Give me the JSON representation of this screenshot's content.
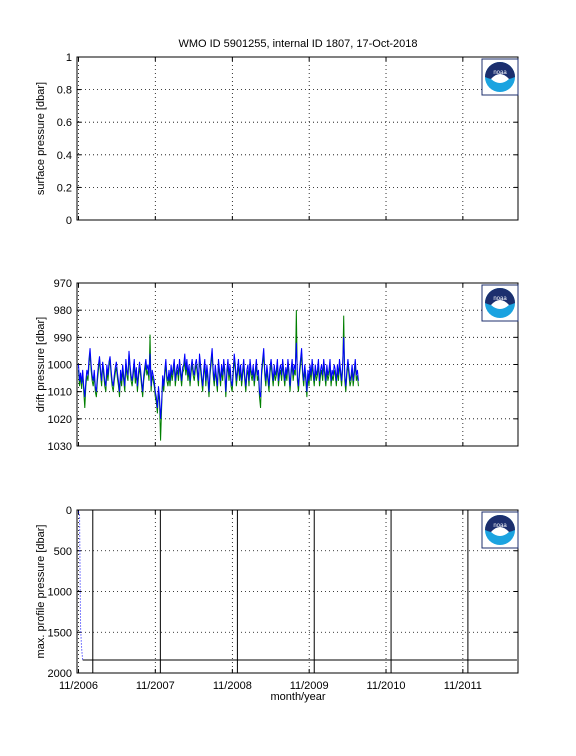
{
  "figure": {
    "title": "WMO ID 5901255, internal ID 1807, 17-Oct-2018",
    "xlabel": "month/year",
    "logo_text": "noaa",
    "logo_colors": {
      "navy": "#1c2f6e",
      "cyan": "#1ba3e0",
      "white": "#ffffff"
    }
  },
  "chart_data": [
    {
      "type": "line",
      "name": "surface",
      "ylabel": "surface pressure [dbar]",
      "ylim": [
        0,
        1
      ],
      "y_reversed": false,
      "yticks": [
        0,
        0.2,
        0.4,
        0.6,
        0.8,
        1
      ],
      "ytick_labels": [
        "0",
        "0.2",
        "0.4",
        "0.6",
        "0.8",
        "1"
      ],
      "xlim": [
        "2006-10-25",
        "2012-07-20"
      ],
      "xticks": [
        "2006-11-01",
        "2007-11-01",
        "2008-11-01",
        "2009-11-01",
        "2010-11-01",
        "2011-11-01"
      ],
      "xtick_labels": [
        "",
        "",
        "",
        "",
        "",
        ""
      ],
      "grid": true,
      "series": []
    },
    {
      "type": "line",
      "name": "drift",
      "ylabel": "drift pressure [dbar]",
      "ylim": [
        970,
        1030
      ],
      "y_reversed": true,
      "yticks": [
        970,
        980,
        990,
        1000,
        1010,
        1020,
        1030
      ],
      "ytick_labels": [
        "970",
        "980",
        "990",
        "1000",
        "1010",
        "1020",
        "1030"
      ],
      "xlim": [
        "2006-10-25",
        "2012-07-20"
      ],
      "xticks": [
        "2006-11-01",
        "2007-11-01",
        "2008-11-01",
        "2009-11-01",
        "2010-11-01",
        "2011-11-01"
      ],
      "xtick_labels": [
        "",
        "",
        "",
        "",
        "",
        ""
      ],
      "grid": true,
      "series": [
        {
          "color": "#007f00",
          "start": "2006-11-01",
          "step_days": 5,
          "values": [
            1002,
            1008,
            1004,
            1009,
            1003,
            1010,
            1016,
            1008,
            1004,
            1006,
            1000,
            996,
            1002,
            1006,
            1008,
            1004,
            1010,
            1012,
            1006,
            1002,
            998,
            1004,
            1008,
            1000,
            1004,
            1008,
            1010,
            1002,
            1006,
            1001,
            998,
            1004,
            1008,
            1010,
            1006,
            1003,
            1001,
            1005,
            1008,
            1012,
            1004,
            1008,
            1002,
            1006,
            1010,
            1000,
            1004,
            1006,
            996,
            1002,
            1006,
            1008,
            1004,
            1000,
            1007,
            1003,
            1010,
            1005,
            1001,
            1004,
            1008,
            1012,
            1006,
            1003,
            1000,
            1004,
            1002,
            1006,
            989,
            1010,
            1004,
            1006,
            1008,
            1012,
            1014,
            1018,
            1010,
            1014,
            1028,
            1016,
            1006,
            1010,
            1004,
            1000,
            1006,
            1008,
            1004,
            1008,
            1002,
            1006,
            1003,
            1000,
            1008,
            1004,
            1002,
            1006,
            1000,
            1004,
            1008,
            1003,
            1002,
            998,
            1004,
            1000,
            1006,
            1002,
            1008,
            1003,
            1000,
            1004,
            1006,
            1002,
            1000,
            1004,
            1008,
            998,
            1002,
            1006,
            1010,
            1004,
            1000,
            1008,
            1002,
            1006,
            1012,
            1004,
            1000,
            996,
            1004,
            1008,
            1002,
            1006,
            1010,
            1000,
            1004,
            1008,
            1002,
            1006,
            1000,
            1004,
            1012,
            1004,
            1000,
            1006,
            1002,
            1008,
            1010,
            1004,
            998,
            1002,
            1008,
            1004,
            1000,
            1006,
            1002,
            1008,
            1004,
            1000,
            1006,
            1010,
            1004,
            1002,
            1008,
            1000,
            1004,
            1006,
            1002,
            1008,
            1004,
            1000,
            1006,
            1004,
            1012,
            1016,
            1004,
            1000,
            996,
            1004,
            1008,
            1002,
            1006,
            1010,
            1003,
            1000,
            1004,
            1008,
            1002,
            1006,
            1004,
            1000,
            1008,
            1004,
            1002,
            1006,
            1000,
            1004,
            1008,
            1003,
            1006,
            1000,
            1004,
            1010,
            1004,
            1000,
            1006,
            1002,
            1004,
            980,
            1006,
            1010,
            1004,
            1000,
            996,
            1004,
            1008,
            1002,
            1006,
            1012,
            1004,
            1008,
            1002,
            1006,
            1000,
            1004,
            1008,
            1002,
            1006,
            1004,
            1000,
            1008,
            1004,
            1002,
            1006,
            1000,
            1004,
            1008,
            1002,
            1006,
            1004,
            1000,
            1008,
            1004,
            1006,
            1002,
            1004,
            1008,
            1002,
            1006,
            1000,
            1004,
            1008,
            1002,
            982,
            1006,
            1010,
            1004,
            1000,
            1004,
            1008,
            1006,
            1002,
            1008,
            1004,
            1000,
            1006,
            1004,
            1008
          ]
        },
        {
          "color": "#0000ff",
          "start": "2006-11-01",
          "step_days": 5,
          "values": [
            1000,
            1006,
            1003,
            1007,
            1002,
            1008,
            1012,
            1006,
            1002,
            1004,
            998,
            994,
            1000,
            1004,
            1006,
            1002,
            1008,
            1010,
            1004,
            1000,
            997,
            1002,
            1006,
            999,
            1002,
            1006,
            1008,
            1000,
            1004,
            999,
            997,
            1002,
            1006,
            1008,
            1004,
            1001,
            999,
            1003,
            1006,
            1010,
            1002,
            1006,
            1000,
            1004,
            1008,
            998,
            1002,
            1004,
            995,
            1000,
            1004,
            1006,
            1002,
            998,
            1005,
            1001,
            1008,
            1003,
            999,
            1002,
            1006,
            1010,
            1004,
            1001,
            998,
            1002,
            1000,
            1004,
            996,
            1008,
            1002,
            1004,
            1006,
            1010,
            1012,
            1016,
            1008,
            1012,
            1020,
            1014,
            1004,
            1008,
            1002,
            998,
            1004,
            1006,
            1002,
            1006,
            1000,
            1004,
            1001,
            998,
            1006,
            1002,
            1000,
            1004,
            998,
            1002,
            1006,
            1001,
            1000,
            996,
            1002,
            998,
            1004,
            1000,
            1006,
            1001,
            998,
            1002,
            1004,
            1000,
            998,
            1002,
            1006,
            996,
            1000,
            1004,
            1008,
            1002,
            998,
            1006,
            1000,
            1004,
            1010,
            1002,
            998,
            994,
            1002,
            1006,
            1000,
            1004,
            1008,
            998,
            1002,
            1006,
            1000,
            1004,
            998,
            1002,
            1010,
            1002,
            998,
            1004,
            1000,
            1006,
            1008,
            1002,
            996,
            1000,
            1006,
            1002,
            998,
            1004,
            1000,
            1006,
            1002,
            998,
            1004,
            1008,
            1002,
            1000,
            1006,
            998,
            1002,
            1004,
            1000,
            1006,
            1002,
            998,
            1004,
            1002,
            1010,
            1012,
            1002,
            998,
            994,
            1002,
            1006,
            1000,
            1004,
            1008,
            1001,
            998,
            1002,
            1006,
            1000,
            1004,
            1002,
            998,
            1006,
            1002,
            1000,
            1004,
            998,
            1002,
            1006,
            1001,
            1004,
            998,
            1002,
            1008,
            1002,
            998,
            1004,
            1000,
            1002,
            992,
            1004,
            1008,
            1002,
            998,
            994,
            1002,
            1006,
            1000,
            1004,
            1010,
            1002,
            1006,
            1000,
            1004,
            998,
            1002,
            1006,
            1000,
            1004,
            1002,
            998,
            1006,
            1002,
            1000,
            1004,
            998,
            1002,
            1006,
            1000,
            1004,
            1002,
            998,
            1006,
            1002,
            1004,
            1000,
            1002,
            1006,
            1000,
            1004,
            998,
            1002,
            1006,
            1000,
            990,
            1004,
            1008,
            1002,
            998,
            1002,
            1006,
            1004,
            1000,
            1006,
            1002,
            998,
            1004,
            1002,
            1006
          ]
        }
      ]
    },
    {
      "type": "line",
      "name": "max_profile",
      "ylabel": "max. profile pressure [dbar]",
      "ylim": [
        0,
        2000
      ],
      "y_reversed": true,
      "yticks": [
        0,
        500,
        1000,
        1500,
        2000
      ],
      "ytick_labels": [
        "0",
        "500",
        "1000",
        "1500",
        "2000"
      ],
      "xlim": [
        "2006-10-25",
        "2012-07-20"
      ],
      "xticks": [
        "2006-11-01",
        "2007-11-01",
        "2008-11-01",
        "2009-11-01",
        "2010-11-01",
        "2011-11-01"
      ],
      "xtick_labels": [
        "11/2006",
        "11/2007",
        "11/2008",
        "11/2009",
        "11/2010",
        "11/2011"
      ],
      "grid": true,
      "vertical_lines": [
        "2007-01-08",
        "2007-11-25",
        "2008-11-25",
        "2009-11-25",
        "2010-11-25",
        "2011-11-25"
      ],
      "series": [
        {
          "color": "#0000ff",
          "style": "dotted",
          "x": [
            "2006-11-01",
            "2006-11-06",
            "2006-11-11",
            "2006-11-16",
            "2006-11-21"
          ],
          "y": [
            20,
            60,
            1450,
            1700,
            1840
          ]
        },
        {
          "color": "#000000",
          "style": "solid",
          "x": [
            "2006-11-21",
            "2012-07-15"
          ],
          "y": [
            1840,
            1840
          ]
        }
      ]
    }
  ]
}
